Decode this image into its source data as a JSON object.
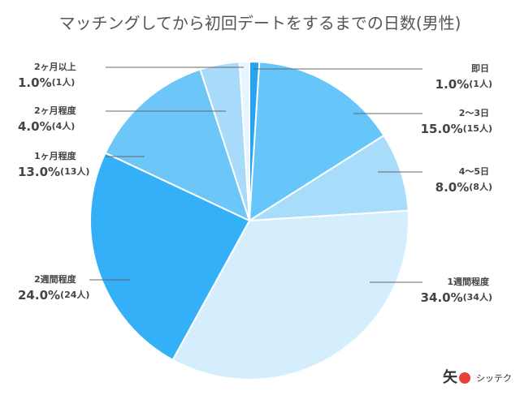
{
  "chart_data": {
    "type": "pie",
    "title": "マッチングしてから初回デートをするまでの日数(男性)",
    "categories": [
      "即日",
      "2〜3日",
      "4〜5日",
      "1週間程度",
      "2週間程度",
      "1ヶ月程度",
      "2ヶ月程度",
      "2ヶ月以上"
    ],
    "values": [
      1,
      15,
      8,
      34,
      24,
      13,
      4,
      1
    ],
    "value_labels": [
      "1.0%",
      "15.0%",
      "8.0%",
      "34.0%",
      "24.0%",
      "13.0%",
      "4.0%",
      "1.0%"
    ],
    "count_labels": [
      "(1人)",
      "(15人)",
      "(8人)",
      "(34人)",
      "(24人)",
      "(13人)",
      "(4人)",
      "(1人)"
    ],
    "colors": [
      "#26a4ef",
      "#66c6f9",
      "#a8dcfb",
      "#d5eefd",
      "#33b0f7",
      "#6cc6f8",
      "#a7dafb",
      "#e6f5fe"
    ],
    "logo": "シッテク"
  }
}
